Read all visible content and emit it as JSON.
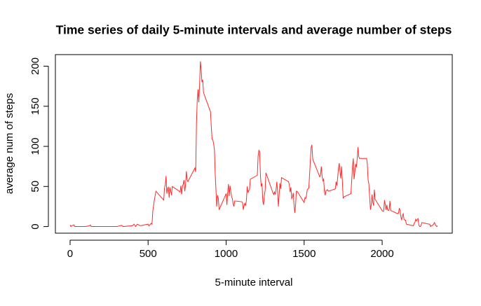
{
  "chart_data": {
    "type": "line",
    "title": "Time series of daily 5-minute intervals and average number of steps",
    "x_label": "5-minute interval",
    "y_label": "average num of steps",
    "color": "#ff2a2a",
    "xlim": [
      -94.2,
      2449.2
    ],
    "xticks": [
      0,
      500,
      1000,
      1500,
      2000
    ],
    "ylim": [
      -8.25,
      214.4
    ],
    "yticks": [
      0,
      50,
      100,
      150,
      200
    ],
    "x": [
      0,
      5,
      10,
      25,
      30,
      100,
      125,
      130,
      135,
      200,
      300,
      330,
      340,
      400,
      410,
      420,
      430,
      440,
      450,
      500,
      505,
      510,
      515,
      520,
      525,
      530,
      540,
      550,
      555,
      600,
      605,
      610,
      615,
      620,
      625,
      630,
      635,
      640,
      645,
      650,
      655,
      700,
      705,
      710,
      715,
      720,
      725,
      730,
      735,
      740,
      745,
      750,
      755,
      800,
      805,
      810,
      815,
      820,
      825,
      830,
      835,
      840,
      845,
      850,
      855,
      900,
      905,
      910,
      915,
      920,
      925,
      930,
      935,
      940,
      945,
      950,
      955,
      1000,
      1005,
      1010,
      1015,
      1020,
      1025,
      1030,
      1035,
      1040,
      1045,
      1050,
      1055,
      1100,
      1105,
      1110,
      1115,
      1120,
      1125,
      1130,
      1135,
      1140,
      1145,
      1150,
      1155,
      1200,
      1205,
      1210,
      1215,
      1220,
      1225,
      1230,
      1235,
      1240,
      1245,
      1250,
      1255,
      1300,
      1305,
      1310,
      1315,
      1320,
      1325,
      1330,
      1335,
      1340,
      1345,
      1350,
      1355,
      1400,
      1405,
      1410,
      1415,
      1420,
      1425,
      1430,
      1435,
      1440,
      1445,
      1450,
      1455,
      1500,
      1505,
      1510,
      1515,
      1520,
      1525,
      1530,
      1535,
      1540,
      1545,
      1550,
      1555,
      1600,
      1605,
      1610,
      1615,
      1620,
      1625,
      1630,
      1635,
      1640,
      1645,
      1650,
      1655,
      1700,
      1705,
      1710,
      1715,
      1720,
      1725,
      1730,
      1735,
      1740,
      1745,
      1750,
      1755,
      1800,
      1805,
      1810,
      1815,
      1820,
      1825,
      1830,
      1835,
      1840,
      1845,
      1850,
      1855,
      1900,
      1905,
      1910,
      1915,
      1920,
      1925,
      1930,
      1935,
      1940,
      1945,
      1950,
      1955,
      2000,
      2005,
      2010,
      2015,
      2020,
      2025,
      2030,
      2035,
      2040,
      2045,
      2050,
      2055,
      2100,
      2105,
      2110,
      2115,
      2120,
      2125,
      2130,
      2135,
      2140,
      2145,
      2150,
      2155,
      2200,
      2205,
      2210,
      2215,
      2220,
      2225,
      2230,
      2235,
      2240,
      2245,
      2250,
      2255,
      2300,
      2305,
      2310,
      2315,
      2320,
      2325,
      2330,
      2335,
      2340,
      2345,
      2350,
      2355
    ],
    "values": [
      2,
      0,
      1,
      2,
      0,
      0,
      1,
      2,
      0,
      0,
      0,
      1.5,
      0,
      1,
      3,
      0,
      3,
      2,
      1,
      3,
      1,
      2,
      3,
      4,
      3,
      19,
      33,
      44,
      43,
      33,
      48,
      52,
      63,
      41,
      48,
      49,
      36,
      49,
      44,
      39,
      50,
      44,
      43,
      51,
      40,
      50,
      53,
      58,
      44,
      52,
      69,
      58,
      56,
      73,
      68,
      129,
      158,
      171,
      155,
      177,
      206,
      196,
      180,
      183,
      167,
      143,
      124,
      109,
      108,
      103,
      96,
      66,
      45,
      25,
      39,
      35,
      21,
      41,
      27,
      42,
      53,
      38,
      51,
      44,
      37,
      35,
      28,
      25,
      32,
      31,
      30,
      21,
      26,
      29,
      26,
      33,
      50,
      42,
      45,
      46,
      59,
      64,
      88,
      95,
      93,
      63,
      50,
      54,
      32,
      27,
      38,
      45,
      67,
      42,
      40,
      43,
      40,
      46,
      56,
      43,
      25,
      40,
      54,
      47,
      61,
      56,
      52,
      43,
      49,
      35,
      37,
      42,
      28,
      17,
      26,
      44,
      44,
      30,
      36,
      35,
      39,
      46,
      47,
      48,
      65,
      83,
      99,
      102,
      84,
      62,
      64,
      75,
      63,
      57,
      59,
      44,
      39,
      45,
      45,
      46,
      44,
      47,
      56,
      51,
      61,
      73,
      79,
      69,
      60,
      75,
      57,
      35,
      37,
      41,
      58,
      75,
      85,
      59,
      68,
      78,
      74,
      85,
      99,
      87,
      85,
      85,
      78,
      58,
      53,
      36,
      21,
      27,
      40,
      30,
      26,
      46,
      34,
      20,
      19,
      19,
      33,
      27,
      21,
      27,
      21,
      20,
      21,
      32,
      20,
      16,
      17,
      23,
      20,
      12,
      8,
      14,
      16,
      9,
      8,
      8,
      3,
      1,
      4,
      5,
      9,
      7,
      9,
      10,
      2,
      0,
      0,
      2,
      5,
      3,
      3,
      0,
      1,
      1,
      2,
      3,
      5,
      3,
      1,
      0,
      1
    ]
  }
}
